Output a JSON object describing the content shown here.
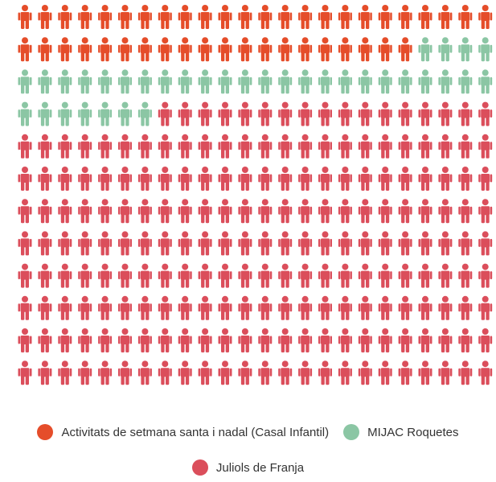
{
  "chart_data": {
    "type": "waffle",
    "title": "",
    "grid": {
      "rows": 12,
      "cols": 24
    },
    "unit": "person-icon",
    "series": [
      {
        "name": "Activitats de setmana santa i nadal (Casal Infantil)",
        "value": 44,
        "color": "#E54D2A"
      },
      {
        "name": "MIJAC Roquetes",
        "value": 35,
        "color": "#8BC6A4"
      },
      {
        "name": "Juliols de Franja",
        "value": 209,
        "color": "#DB4E5B"
      }
    ],
    "total": 288
  }
}
